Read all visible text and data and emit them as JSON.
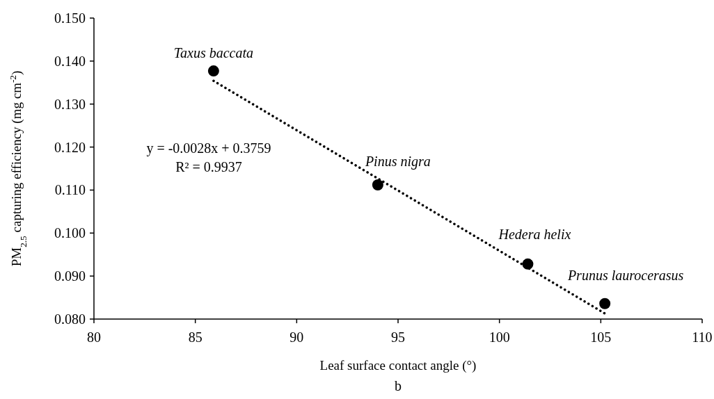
{
  "chart_data": {
    "type": "scatter",
    "xlabel": "Leaf surface contact angle (°)",
    "ylabel": "PM$_{2.5}$ capturing efficiency (mg cm$^{-2}$)",
    "xlim": [
      80,
      110
    ],
    "xticks": [
      80,
      85,
      90,
      95,
      100,
      105,
      110
    ],
    "ylim": [
      0.08,
      0.15
    ],
    "yticks": [
      {
        "value": 0.08,
        "label": "0.080"
      },
      {
        "value": 0.09,
        "label": "0.090"
      },
      {
        "value": 0.1,
        "label": "0.100"
      },
      {
        "value": 0.11,
        "label": "0.110"
      },
      {
        "value": 0.12,
        "label": "0.120"
      },
      {
        "value": 0.13,
        "label": "0.130"
      },
      {
        "value": 0.14,
        "label": "0.140"
      },
      {
        "value": 0.15,
        "label": "0.150"
      }
    ],
    "grid": false,
    "marker": "circle",
    "series": [
      {
        "color": "#000000",
        "x": [
          85.9,
          94.0,
          101.4,
          105.2
        ],
        "values": [
          0.1377,
          0.1112,
          0.0928,
          0.0836
        ]
      },
      {
        "type": "line",
        "color": "#000000",
        "line_style": "dotted",
        "marker": "none",
        "x": [
          85.9,
          105.2
        ],
        "values": [
          0.1354,
          0.0813
        ]
      }
    ],
    "annotations": [
      {
        "text": "Taxus baccata",
        "x": 85.9,
        "y": 0.1377
      },
      {
        "text": "Pinus nigra",
        "x": 94.0,
        "y": 0.1112
      },
      {
        "text": "Hedera helix",
        "x": 101.4,
        "y": 0.0928
      },
      {
        "text": "Prunus laurocerasus",
        "x": 105.2,
        "y": 0.0836
      },
      "y = -0.0028x + 0.3759",
      "R² = 0.9937",
      "b"
    ]
  }
}
